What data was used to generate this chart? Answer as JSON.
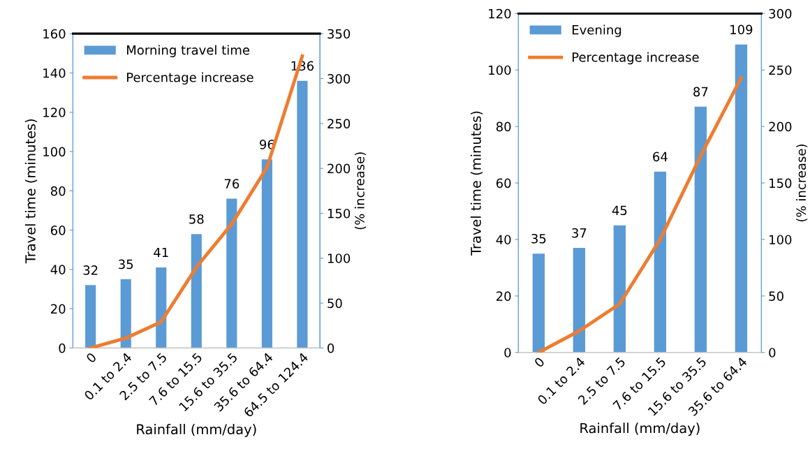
{
  "chart_data": [
    {
      "type": "bar",
      "xlabel": "Rainfall (mm/day)",
      "ylabel": "Travel time (minutes)",
      "y2label": "(% increase)",
      "categories": [
        "0",
        "0.1 to 2.4",
        "2.5 to 7.5",
        "7.6 to 15.5",
        "15.6 to 35.5",
        "35.6 to 64.4",
        "64.5 to 124.4"
      ],
      "series": [
        {
          "name": "Morning travel time",
          "color": "#5b9bd5",
          "values": [
            32,
            35,
            41,
            58,
            76,
            96,
            136
          ],
          "value_labels": [
            "32",
            "35",
            "41",
            "58",
            "76",
            "96",
            "136"
          ]
        },
        {
          "name": "Percentage increase",
          "type": "line",
          "axis": "y2",
          "color": "#ed7d31",
          "values": [
            0,
            11,
            29,
            90,
            138,
            201,
            325
          ]
        }
      ],
      "ylim": [
        0,
        160
      ],
      "yticks": [
        0,
        20,
        40,
        60,
        80,
        100,
        120,
        140,
        160
      ],
      "y2lim": [
        0,
        350
      ],
      "y2ticks": [
        0,
        50,
        100,
        150,
        200,
        250,
        300,
        350
      ],
      "legend": "top left",
      "grid": false,
      "marker": "none"
    },
    {
      "type": "bar",
      "xlabel": "Rainfall (mm/day)",
      "ylabel": "Travel time (minutes)",
      "y2label": "(% increase)",
      "categories": [
        "0",
        "0.1 to 2.4",
        "2.5 to 7.5",
        "7.6 to 15.5",
        "15.6 to 35.5",
        "35.6 to 64.4"
      ],
      "series": [
        {
          "name": "Evening",
          "color": "#5b9bd5",
          "values": [
            35,
            37,
            45,
            64,
            87,
            109
          ],
          "value_labels": [
            "35",
            "37",
            "45",
            "64",
            "87",
            "109"
          ]
        },
        {
          "name": "Percentage increase",
          "type": "line",
          "axis": "y2",
          "color": "#ed7d31",
          "values": [
            0,
            19,
            43,
            100,
            174,
            243
          ]
        }
      ],
      "ylim": [
        0,
        120
      ],
      "yticks": [
        0,
        20,
        40,
        60,
        80,
        100,
        120
      ],
      "y2lim": [
        0,
        300
      ],
      "y2ticks": [
        0,
        50,
        100,
        150,
        200,
        250,
        300
      ],
      "legend": "top left",
      "grid": false,
      "marker": "none"
    }
  ]
}
